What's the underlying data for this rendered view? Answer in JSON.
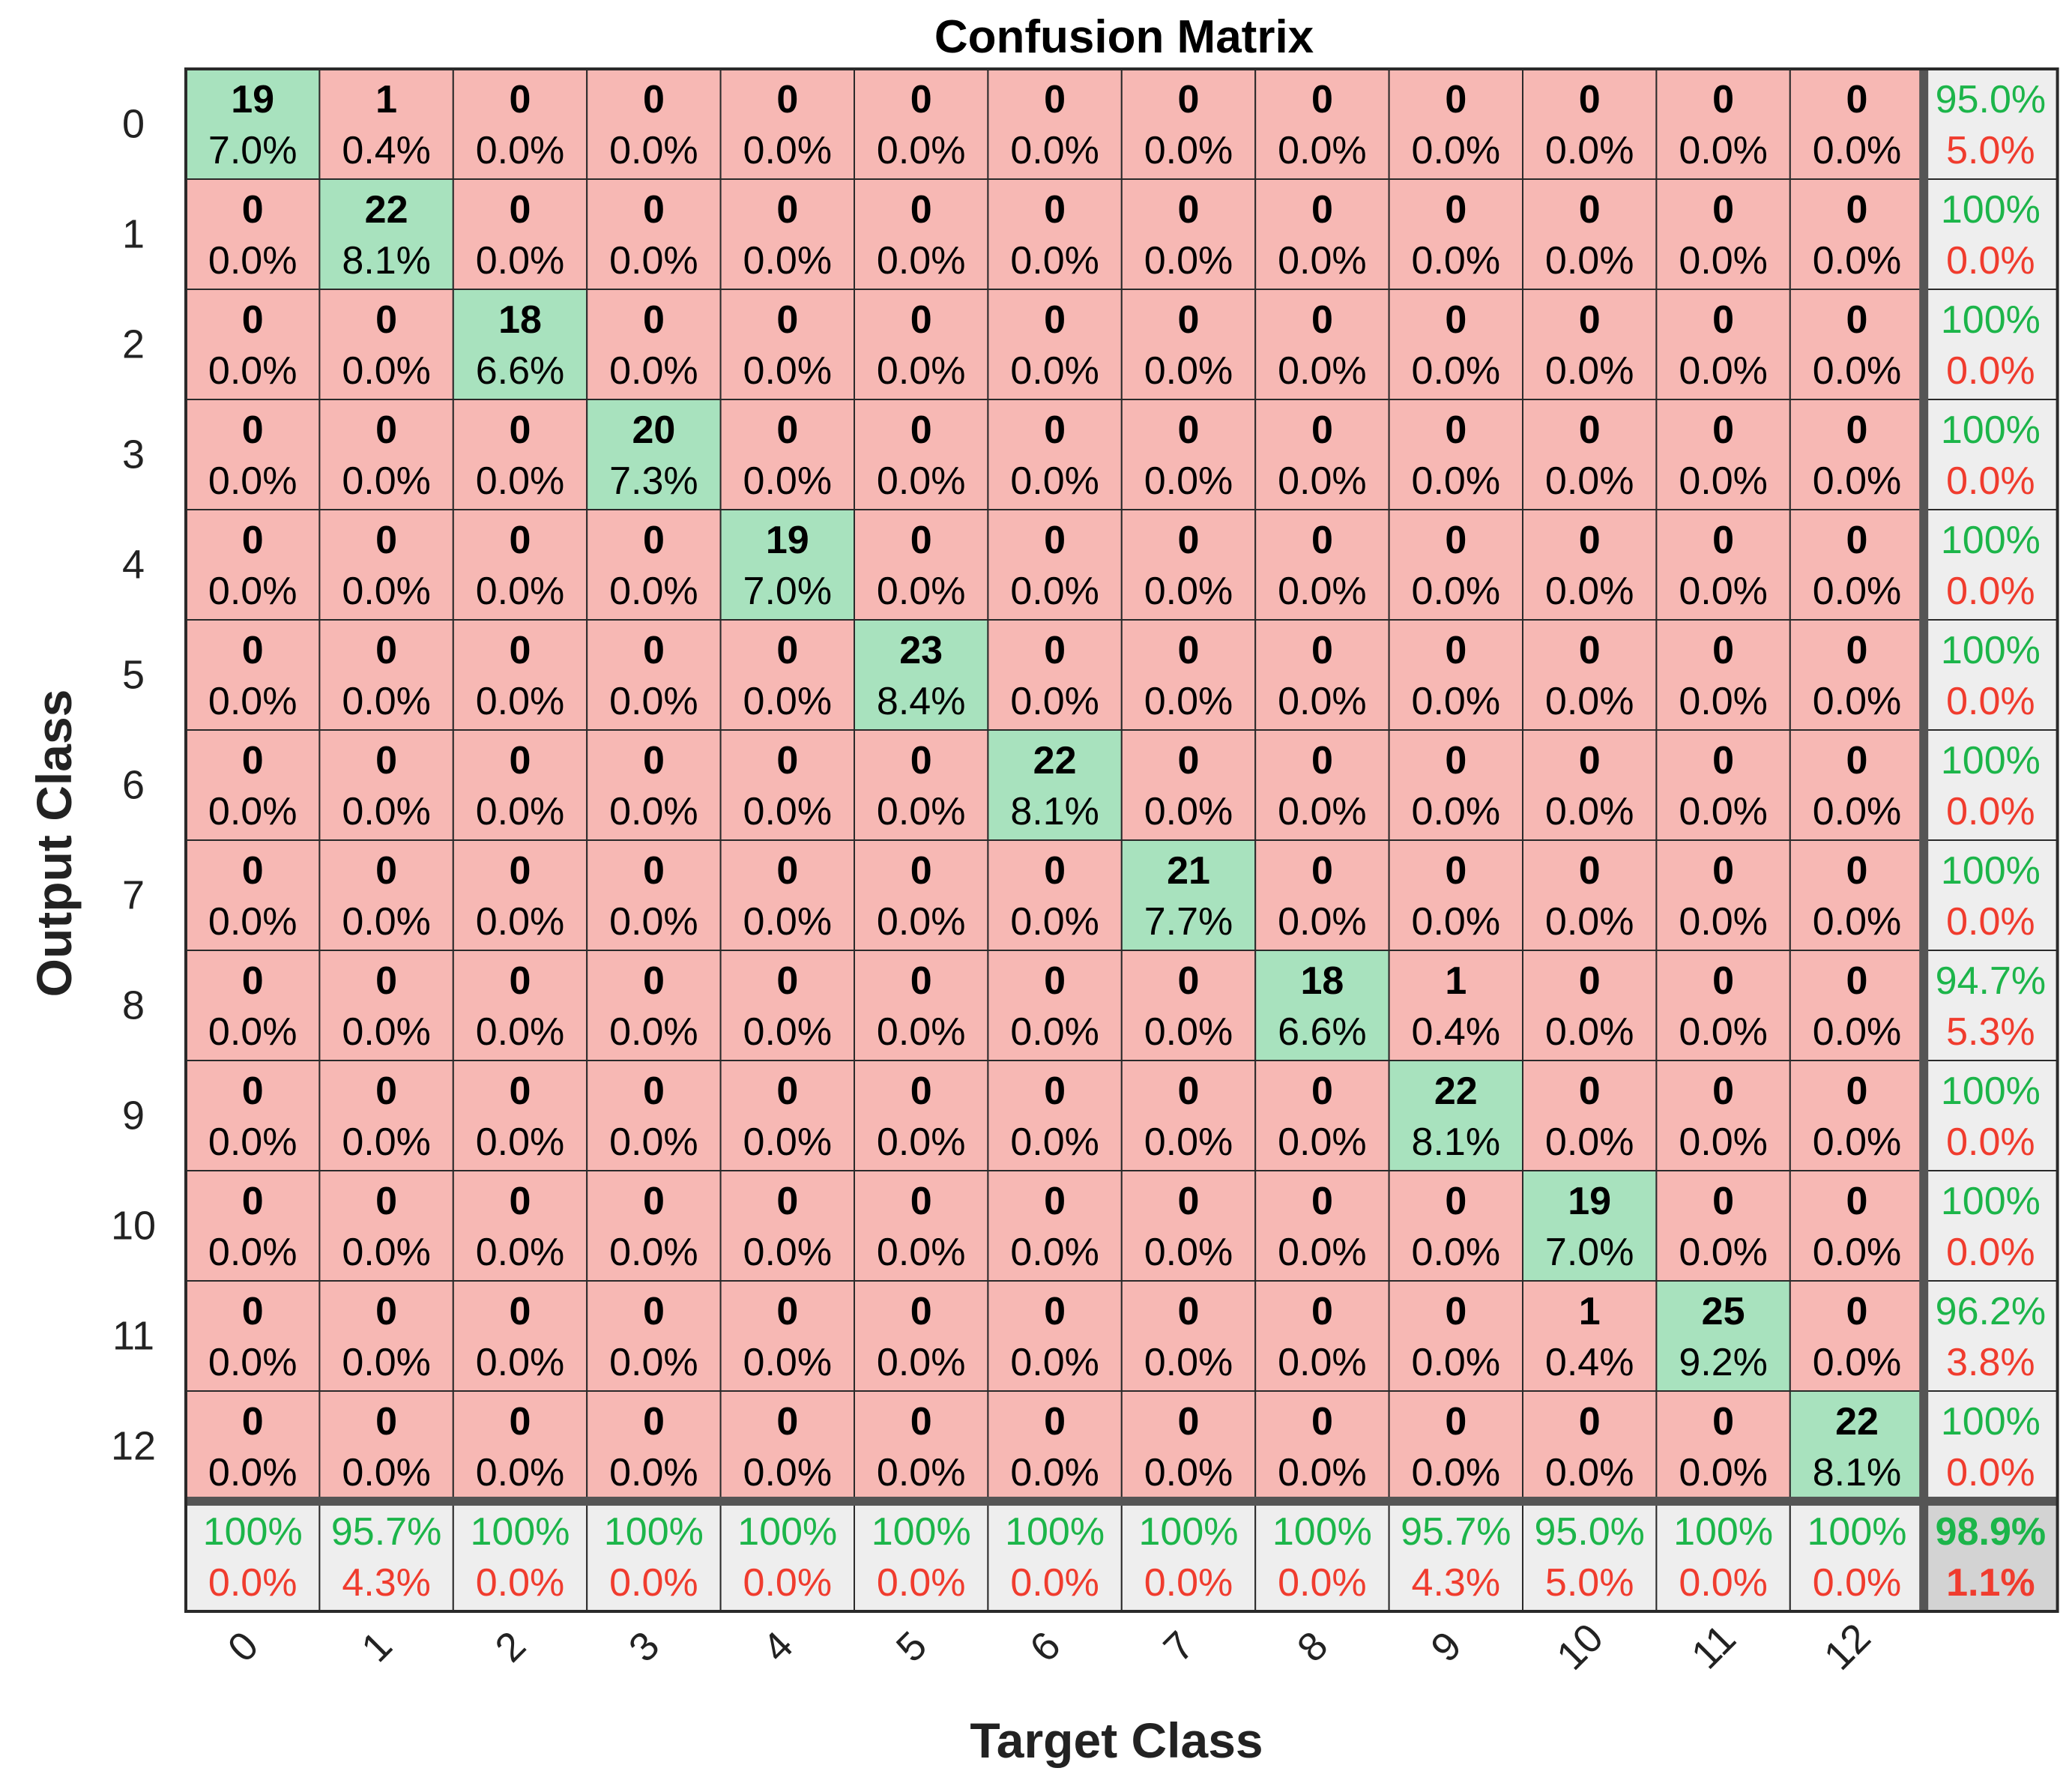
{
  "chart_data": {
    "type": "heatmap",
    "title": "Confusion Matrix",
    "xlabel": "Target Class",
    "ylabel": "Output Class",
    "classes": [
      "0",
      "1",
      "2",
      "3",
      "4",
      "5",
      "6",
      "7",
      "8",
      "9",
      "10",
      "11",
      "12"
    ],
    "matrix": [
      [
        19,
        1,
        0,
        0,
        0,
        0,
        0,
        0,
        0,
        0,
        0,
        0,
        0
      ],
      [
        0,
        22,
        0,
        0,
        0,
        0,
        0,
        0,
        0,
        0,
        0,
        0,
        0
      ],
      [
        0,
        0,
        18,
        0,
        0,
        0,
        0,
        0,
        0,
        0,
        0,
        0,
        0
      ],
      [
        0,
        0,
        0,
        20,
        0,
        0,
        0,
        0,
        0,
        0,
        0,
        0,
        0
      ],
      [
        0,
        0,
        0,
        0,
        19,
        0,
        0,
        0,
        0,
        0,
        0,
        0,
        0
      ],
      [
        0,
        0,
        0,
        0,
        0,
        23,
        0,
        0,
        0,
        0,
        0,
        0,
        0
      ],
      [
        0,
        0,
        0,
        0,
        0,
        0,
        22,
        0,
        0,
        0,
        0,
        0,
        0
      ],
      [
        0,
        0,
        0,
        0,
        0,
        0,
        0,
        21,
        0,
        0,
        0,
        0,
        0
      ],
      [
        0,
        0,
        0,
        0,
        0,
        0,
        0,
        0,
        18,
        1,
        0,
        0,
        0
      ],
      [
        0,
        0,
        0,
        0,
        0,
        0,
        0,
        0,
        0,
        22,
        0,
        0,
        0
      ],
      [
        0,
        0,
        0,
        0,
        0,
        0,
        0,
        0,
        0,
        0,
        19,
        0,
        0
      ],
      [
        0,
        0,
        0,
        0,
        0,
        0,
        0,
        0,
        0,
        0,
        1,
        25,
        0
      ],
      [
        0,
        0,
        0,
        0,
        0,
        0,
        0,
        0,
        0,
        0,
        0,
        0,
        22
      ]
    ],
    "matrix_percent": [
      [
        "7.0%",
        "0.4%",
        "0.0%",
        "0.0%",
        "0.0%",
        "0.0%",
        "0.0%",
        "0.0%",
        "0.0%",
        "0.0%",
        "0.0%",
        "0.0%",
        "0.0%"
      ],
      [
        "0.0%",
        "8.1%",
        "0.0%",
        "0.0%",
        "0.0%",
        "0.0%",
        "0.0%",
        "0.0%",
        "0.0%",
        "0.0%",
        "0.0%",
        "0.0%",
        "0.0%"
      ],
      [
        "0.0%",
        "0.0%",
        "6.6%",
        "0.0%",
        "0.0%",
        "0.0%",
        "0.0%",
        "0.0%",
        "0.0%",
        "0.0%",
        "0.0%",
        "0.0%",
        "0.0%"
      ],
      [
        "0.0%",
        "0.0%",
        "0.0%",
        "7.3%",
        "0.0%",
        "0.0%",
        "0.0%",
        "0.0%",
        "0.0%",
        "0.0%",
        "0.0%",
        "0.0%",
        "0.0%"
      ],
      [
        "0.0%",
        "0.0%",
        "0.0%",
        "0.0%",
        "7.0%",
        "0.0%",
        "0.0%",
        "0.0%",
        "0.0%",
        "0.0%",
        "0.0%",
        "0.0%",
        "0.0%"
      ],
      [
        "0.0%",
        "0.0%",
        "0.0%",
        "0.0%",
        "0.0%",
        "8.4%",
        "0.0%",
        "0.0%",
        "0.0%",
        "0.0%",
        "0.0%",
        "0.0%",
        "0.0%"
      ],
      [
        "0.0%",
        "0.0%",
        "0.0%",
        "0.0%",
        "0.0%",
        "0.0%",
        "8.1%",
        "0.0%",
        "0.0%",
        "0.0%",
        "0.0%",
        "0.0%",
        "0.0%"
      ],
      [
        "0.0%",
        "0.0%",
        "0.0%",
        "0.0%",
        "0.0%",
        "0.0%",
        "0.0%",
        "7.7%",
        "0.0%",
        "0.0%",
        "0.0%",
        "0.0%",
        "0.0%"
      ],
      [
        "0.0%",
        "0.0%",
        "0.0%",
        "0.0%",
        "0.0%",
        "0.0%",
        "0.0%",
        "0.0%",
        "6.6%",
        "0.4%",
        "0.0%",
        "0.0%",
        "0.0%"
      ],
      [
        "0.0%",
        "0.0%",
        "0.0%",
        "0.0%",
        "0.0%",
        "0.0%",
        "0.0%",
        "0.0%",
        "0.0%",
        "8.1%",
        "0.0%",
        "0.0%",
        "0.0%"
      ],
      [
        "0.0%",
        "0.0%",
        "0.0%",
        "0.0%",
        "0.0%",
        "0.0%",
        "0.0%",
        "0.0%",
        "0.0%",
        "0.0%",
        "7.0%",
        "0.0%",
        "0.0%"
      ],
      [
        "0.0%",
        "0.0%",
        "0.0%",
        "0.0%",
        "0.0%",
        "0.0%",
        "0.0%",
        "0.0%",
        "0.0%",
        "0.0%",
        "0.4%",
        "9.2%",
        "0.0%"
      ],
      [
        "0.0%",
        "0.0%",
        "0.0%",
        "0.0%",
        "0.0%",
        "0.0%",
        "0.0%",
        "0.0%",
        "0.0%",
        "0.0%",
        "0.0%",
        "0.0%",
        "8.1%"
      ]
    ],
    "row_summary": [
      {
        "correct": "95.0%",
        "error": "5.0%"
      },
      {
        "correct": "100%",
        "error": "0.0%"
      },
      {
        "correct": "100%",
        "error": "0.0%"
      },
      {
        "correct": "100%",
        "error": "0.0%"
      },
      {
        "correct": "100%",
        "error": "0.0%"
      },
      {
        "correct": "100%",
        "error": "0.0%"
      },
      {
        "correct": "100%",
        "error": "0.0%"
      },
      {
        "correct": "100%",
        "error": "0.0%"
      },
      {
        "correct": "94.7%",
        "error": "5.3%"
      },
      {
        "correct": "100%",
        "error": "0.0%"
      },
      {
        "correct": "100%",
        "error": "0.0%"
      },
      {
        "correct": "96.2%",
        "error": "3.8%"
      },
      {
        "correct": "100%",
        "error": "0.0%"
      }
    ],
    "column_summary": [
      {
        "correct": "100%",
        "error": "0.0%"
      },
      {
        "correct": "95.7%",
        "error": "4.3%"
      },
      {
        "correct": "100%",
        "error": "0.0%"
      },
      {
        "correct": "100%",
        "error": "0.0%"
      },
      {
        "correct": "100%",
        "error": "0.0%"
      },
      {
        "correct": "100%",
        "error": "0.0%"
      },
      {
        "correct": "100%",
        "error": "0.0%"
      },
      {
        "correct": "100%",
        "error": "0.0%"
      },
      {
        "correct": "100%",
        "error": "0.0%"
      },
      {
        "correct": "95.7%",
        "error": "4.3%"
      },
      {
        "correct": "95.0%",
        "error": "5.0%"
      },
      {
        "correct": "100%",
        "error": "0.0%"
      },
      {
        "correct": "100%",
        "error": "0.0%"
      }
    ],
    "overall": {
      "correct": "98.9%",
      "error": "1.1%"
    },
    "colors": {
      "correct_cell": "#a8e2be",
      "error_cell": "#f7b8b4",
      "summary_cell": "#eeeeee",
      "overall_cell": "#d3d3d3",
      "correct_text": "#1cb54a",
      "error_text": "#f03c2e",
      "grid_line": "#2a2a2a",
      "separator": "#555555"
    }
  }
}
